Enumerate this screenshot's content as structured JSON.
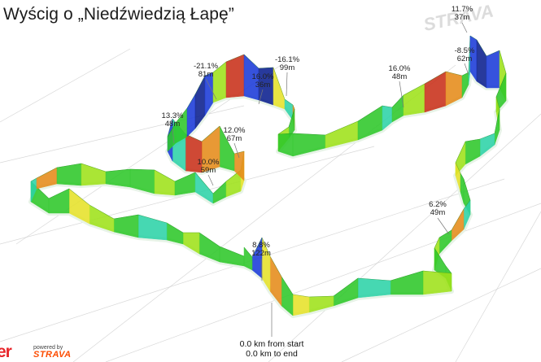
{
  "title": "Wyścig o „Niedźwiedzią Łapę”",
  "watermark_word": "STRAVA",
  "brand_partial": "er",
  "powered_by": {
    "line1": "powered by",
    "line2": "STRAVA"
  },
  "readout": {
    "from_start": "0.0 km from start",
    "to_end": "0.0 km to end"
  },
  "segment_labels": [
    {
      "id": "s1",
      "grade": "11.7%",
      "length": "37m"
    },
    {
      "id": "s2",
      "grade": "-8.5%",
      "length": "62m"
    },
    {
      "id": "s3",
      "grade": "-21.1%",
      "length": "81m"
    },
    {
      "id": "s4",
      "grade": "-16.1%",
      "length": "99m"
    },
    {
      "id": "s5",
      "grade": "16.0%",
      "length": "36m"
    },
    {
      "id": "s6",
      "grade": "16.0%",
      "length": "48m"
    },
    {
      "id": "s7",
      "grade": "13.3%",
      "length": "48m"
    },
    {
      "id": "s8",
      "grade": "12.0%",
      "length": "67m"
    },
    {
      "id": "s9",
      "grade": "10.0%",
      "length": "59m"
    },
    {
      "id": "s10",
      "grade": "6.2%",
      "length": "49m"
    },
    {
      "id": "s11",
      "grade": "8.8%",
      "length": "122m"
    }
  ],
  "colors": {
    "green": "#2ec82a",
    "lime": "#9fe21a",
    "yellow": "#e6e22a",
    "orange": "#e58b1a",
    "red": "#c9301a",
    "teal": "#2dd3a8",
    "blue": "#1b3bd9",
    "darkblue": "#0b1f8f",
    "grid": "#c8c8c8"
  }
}
